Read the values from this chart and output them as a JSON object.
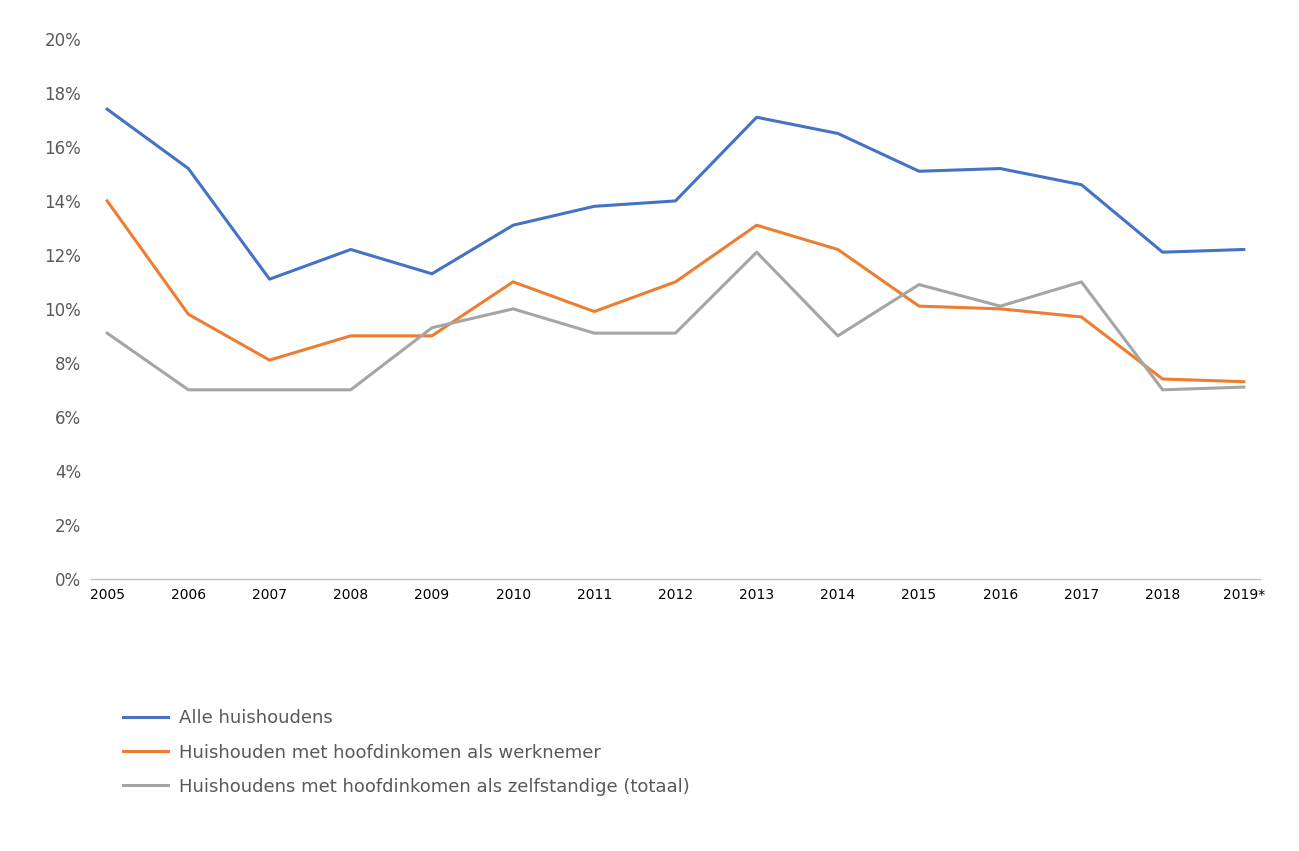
{
  "years": [
    "2005",
    "2006",
    "2007",
    "2008",
    "2009",
    "2010",
    "2011",
    "2012",
    "2013",
    "2014",
    "2015",
    "2016",
    "2017",
    "2018",
    "2019*"
  ],
  "alle_huishoudens": [
    0.174,
    0.152,
    0.111,
    0.122,
    0.113,
    0.131,
    0.138,
    0.14,
    0.171,
    0.165,
    0.151,
    0.152,
    0.146,
    0.121,
    0.122
  ],
  "werknemer": [
    0.14,
    0.098,
    0.081,
    0.09,
    0.09,
    0.11,
    0.099,
    0.11,
    0.131,
    0.122,
    0.101,
    0.1,
    0.097,
    0.074,
    0.073
  ],
  "zelfstandige": [
    0.091,
    0.07,
    0.07,
    0.07,
    0.093,
    0.1,
    0.091,
    0.091,
    0.121,
    0.09,
    0.109,
    0.101,
    0.11,
    0.07,
    0.071
  ],
  "color_blue": "#4472C4",
  "color_orange": "#ED7D31",
  "color_gray": "#A5A5A5",
  "ylim_min": 0.0,
  "ylim_max": 0.205,
  "yticks": [
    0.0,
    0.02,
    0.04,
    0.06,
    0.08,
    0.1,
    0.12,
    0.14,
    0.16,
    0.18,
    0.2
  ],
  "legend_labels": [
    "Alle huishoudens",
    "Huishouden met hoofdinkomen als werknemer",
    "Huishoudens met hoofdinkomen als zelfstandige (totaal)"
  ],
  "line_width": 2.2,
  "background_color": "#ffffff",
  "axisline_color": "#BFBFBF",
  "tick_color": "#595959",
  "tick_fontsize": 12
}
